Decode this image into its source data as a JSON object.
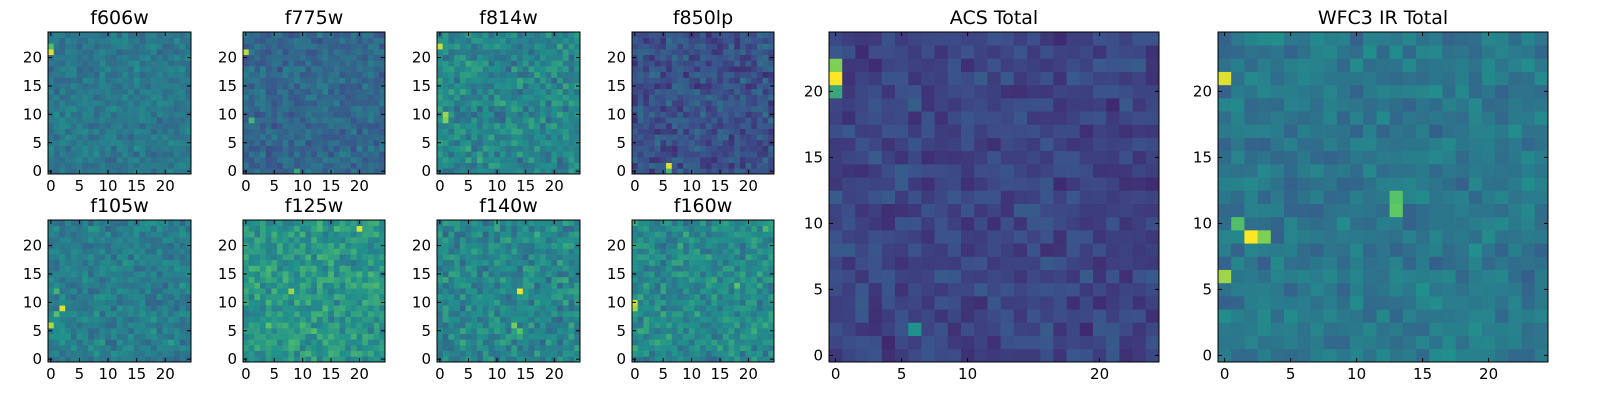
{
  "colormap": [
    "#440154",
    "#3b528b",
    "#21918c",
    "#5ec962",
    "#fde725"
  ],
  "chart_data": [
    {
      "type": "heatmap",
      "title": "f606w",
      "grid_size": 25,
      "xlim": [
        0,
        24
      ],
      "ylim": [
        0,
        24
      ],
      "xticks": [
        "0",
        "5",
        "10",
        "15",
        "20"
      ],
      "yticks": [
        "0",
        "5",
        "10",
        "15",
        "20"
      ],
      "level_range": [
        0.3,
        0.5
      ],
      "seed": 11,
      "hotspots": [
        {
          "x": 0,
          "y": 21,
          "v": 0.95
        },
        {
          "x": 0,
          "y": 22,
          "v": 0.7
        }
      ]
    },
    {
      "type": "heatmap",
      "title": "f775w",
      "grid_size": 25,
      "xlim": [
        0,
        24
      ],
      "ylim": [
        0,
        24
      ],
      "xticks": [
        "0",
        "5",
        "10",
        "15",
        "20"
      ],
      "yticks": [
        "0",
        "5",
        "10",
        "15",
        "20"
      ],
      "level_range": [
        0.22,
        0.45
      ],
      "seed": 23,
      "hotspots": [
        {
          "x": 0,
          "y": 21,
          "v": 0.9
        },
        {
          "x": 1,
          "y": 9,
          "v": 0.65
        },
        {
          "x": 9,
          "y": 0,
          "v": 0.6
        }
      ]
    },
    {
      "type": "heatmap",
      "title": "f814w",
      "grid_size": 25,
      "xlim": [
        0,
        24
      ],
      "ylim": [
        0,
        24
      ],
      "xticks": [
        "0",
        "5",
        "10",
        "15",
        "20"
      ],
      "yticks": [
        "0",
        "5",
        "10",
        "15",
        "20"
      ],
      "level_range": [
        0.3,
        0.62
      ],
      "seed": 37,
      "hotspots": [
        {
          "x": 0,
          "y": 22,
          "v": 0.92
        },
        {
          "x": 1,
          "y": 10,
          "v": 0.85
        },
        {
          "x": 1,
          "y": 9,
          "v": 0.8
        }
      ]
    },
    {
      "type": "heatmap",
      "title": "f850lp",
      "grid_size": 25,
      "xlim": [
        0,
        24
      ],
      "ylim": [
        0,
        24
      ],
      "xticks": [
        "0",
        "5",
        "10",
        "15",
        "20"
      ],
      "yticks": [
        "0",
        "5",
        "10",
        "15",
        "20"
      ],
      "level_range": [
        0.12,
        0.38
      ],
      "seed": 41,
      "hotspots": [
        {
          "x": 6,
          "y": 1,
          "v": 0.95
        },
        {
          "x": 6,
          "y": 0,
          "v": 0.65
        }
      ]
    },
    {
      "type": "heatmap",
      "title": "f105w",
      "grid_size": 25,
      "xlim": [
        0,
        24
      ],
      "ylim": [
        0,
        24
      ],
      "xticks": [
        "0",
        "5",
        "10",
        "15",
        "20"
      ],
      "yticks": [
        "0",
        "5",
        "10",
        "15",
        "20"
      ],
      "level_range": [
        0.3,
        0.55
      ],
      "seed": 53,
      "hotspots": [
        {
          "x": 2,
          "y": 9,
          "v": 0.95
        },
        {
          "x": 0,
          "y": 6,
          "v": 0.88
        },
        {
          "x": 1,
          "y": 8,
          "v": 0.7
        },
        {
          "x": 1,
          "y": 12,
          "v": 0.65
        }
      ]
    },
    {
      "type": "heatmap",
      "title": "f125w",
      "grid_size": 25,
      "xlim": [
        0,
        24
      ],
      "ylim": [
        0,
        24
      ],
      "xticks": [
        "0",
        "5",
        "10",
        "15",
        "20"
      ],
      "yticks": [
        "0",
        "5",
        "10",
        "15",
        "20"
      ],
      "level_range": [
        0.38,
        0.68
      ],
      "seed": 67,
      "hotspots": [
        {
          "x": 20,
          "y": 23,
          "v": 0.95
        },
        {
          "x": 8,
          "y": 12,
          "v": 0.85
        },
        {
          "x": 4,
          "y": 6,
          "v": 0.72
        },
        {
          "x": 12,
          "y": 5,
          "v": 0.7
        }
      ]
    },
    {
      "type": "heatmap",
      "title": "f140w",
      "grid_size": 25,
      "xlim": [
        0,
        24
      ],
      "ylim": [
        0,
        24
      ],
      "xticks": [
        "0",
        "5",
        "10",
        "15",
        "20"
      ],
      "yticks": [
        "0",
        "5",
        "10",
        "15",
        "20"
      ],
      "level_range": [
        0.3,
        0.62
      ],
      "seed": 79,
      "hotspots": [
        {
          "x": 14,
          "y": 12,
          "v": 0.98
        },
        {
          "x": 13,
          "y": 6,
          "v": 0.78
        },
        {
          "x": 14,
          "y": 5,
          "v": 0.72
        }
      ]
    },
    {
      "type": "heatmap",
      "title": "f160w",
      "grid_size": 25,
      "xlim": [
        0,
        24
      ],
      "ylim": [
        0,
        24
      ],
      "xticks": [
        "0",
        "5",
        "10",
        "15",
        "20"
      ],
      "yticks": [
        "0",
        "5",
        "10",
        "15",
        "20"
      ],
      "level_range": [
        0.32,
        0.62
      ],
      "seed": 97,
      "hotspots": [
        {
          "x": 0,
          "y": 10,
          "v": 0.92
        },
        {
          "x": 0,
          "y": 9,
          "v": 0.85
        },
        {
          "x": 18,
          "y": 13,
          "v": 0.72
        },
        {
          "x": 23,
          "y": 23,
          "v": 0.68
        }
      ]
    },
    {
      "type": "heatmap",
      "title": "ACS Total",
      "grid_size": 25,
      "xlim": [
        0,
        24
      ],
      "ylim": [
        0,
        24
      ],
      "xticks": [
        "0",
        "5",
        "10",
        "20"
      ],
      "yticks": [
        "0",
        "5",
        "10",
        "15",
        "20"
      ],
      "level_range": [
        0.12,
        0.3
      ],
      "seed": 131,
      "hotspots": [
        {
          "x": 0,
          "y": 21,
          "v": 1.0
        },
        {
          "x": 0,
          "y": 22,
          "v": 0.8
        },
        {
          "x": 0,
          "y": 20,
          "v": 0.6
        },
        {
          "x": 6,
          "y": 2,
          "v": 0.5
        }
      ]
    },
    {
      "type": "heatmap",
      "title": "WFC3 IR Total",
      "grid_size": 25,
      "xlim": [
        0,
        24
      ],
      "ylim": [
        0,
        24
      ],
      "xticks": [
        "0",
        "5",
        "10",
        "15",
        "20"
      ],
      "yticks": [
        "0",
        "5",
        "10",
        "15",
        "20"
      ],
      "level_range": [
        0.3,
        0.5
      ],
      "seed": 151,
      "hotspots": [
        {
          "x": 2,
          "y": 9,
          "v": 1.0
        },
        {
          "x": 0,
          "y": 21,
          "v": 0.95
        },
        {
          "x": 0,
          "y": 6,
          "v": 0.85
        },
        {
          "x": 3,
          "y": 9,
          "v": 0.8
        },
        {
          "x": 13,
          "y": 11,
          "v": 0.75
        },
        {
          "x": 13,
          "y": 12,
          "v": 0.72
        },
        {
          "x": 1,
          "y": 10,
          "v": 0.7
        }
      ]
    }
  ]
}
